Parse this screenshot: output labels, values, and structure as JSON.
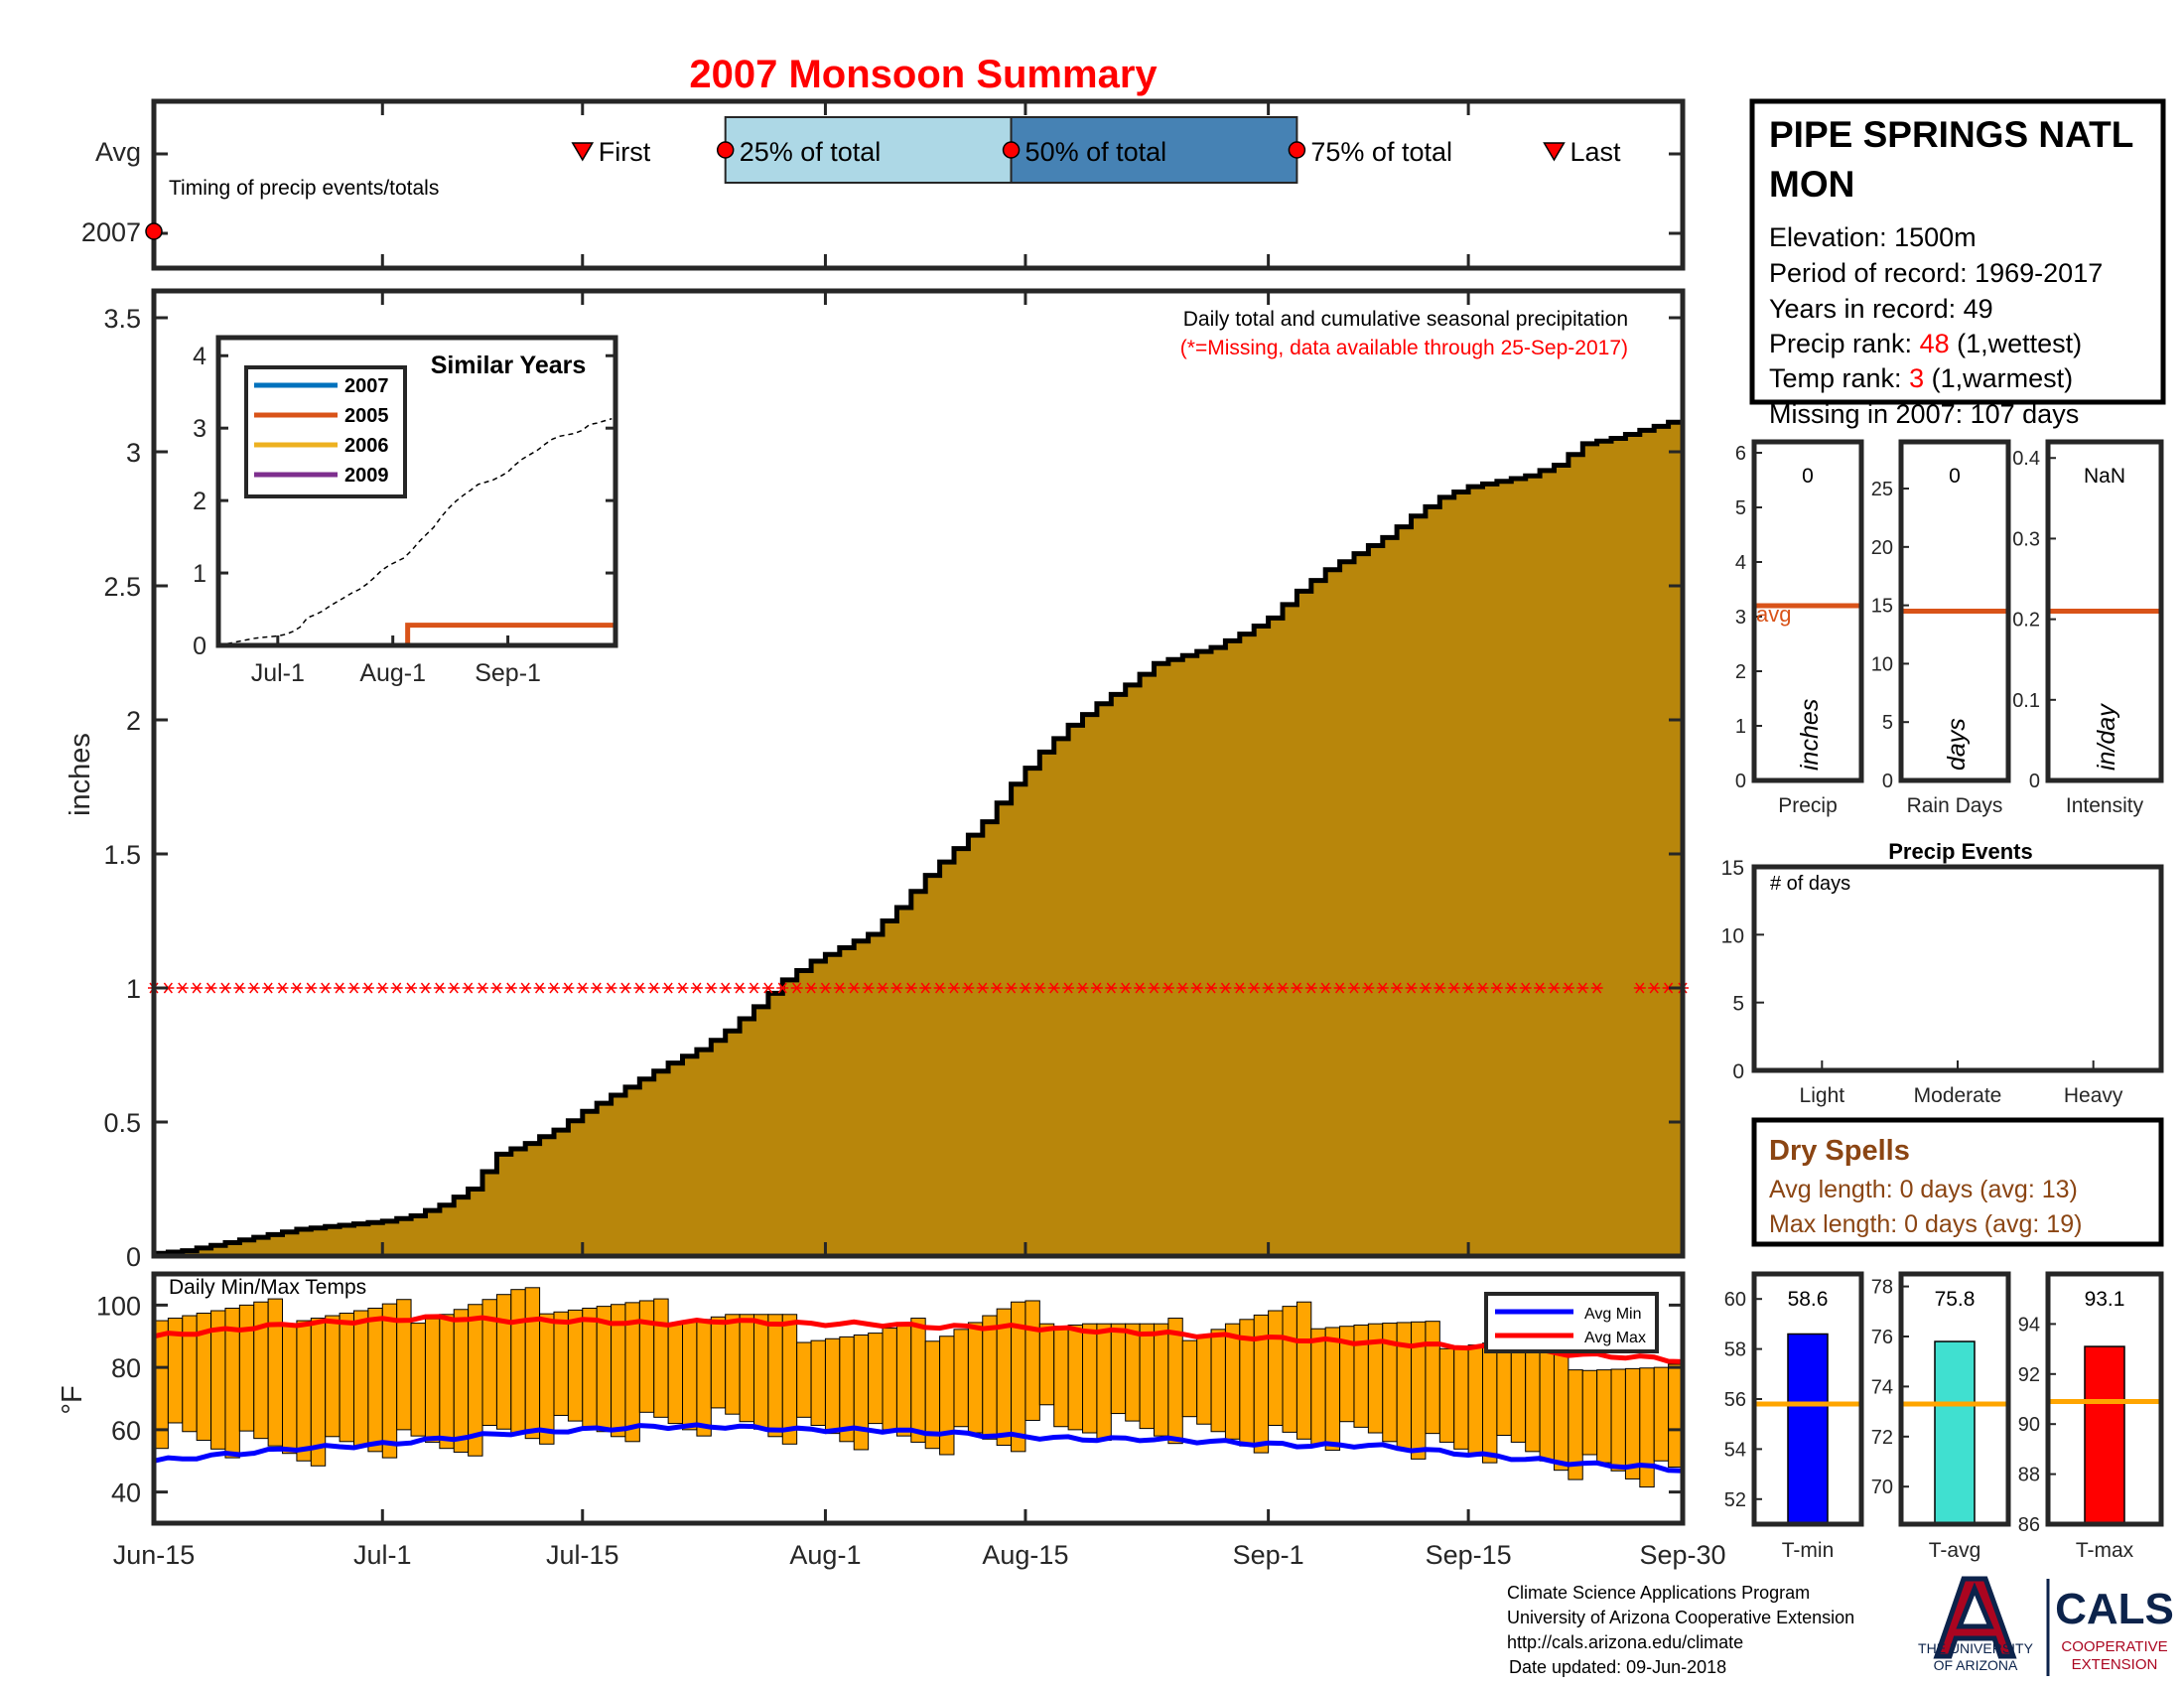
{
  "title": "2007 Monsoon Summary",
  "timing": {
    "avg_label": "Avg",
    "year_label": "2007",
    "caption": "Timing of precip events/totals",
    "first_label": "First",
    "last_label": "Last",
    "q25_label": "25% of total",
    "q50_label": "50% of total",
    "q75_label": "75% of total",
    "avg_first_day": 30,
    "avg_q25_day": 40,
    "avg_q50_day": 60,
    "avg_q75_day": 80,
    "avg_last_day": 98,
    "year_first_day": 0
  },
  "x_axis": {
    "ticks": [
      {
        "label": "Jun-15",
        "day": 0
      },
      {
        "label": "Jul-1",
        "day": 16
      },
      {
        "label": "Jul-15",
        "day": 30
      },
      {
        "label": "Aug-1",
        "day": 47
      },
      {
        "label": "Aug-15",
        "day": 61
      },
      {
        "label": "Sep-1",
        "day": 78
      },
      {
        "label": "Sep-15",
        "day": 92
      },
      {
        "label": "Sep-30",
        "day": 107
      }
    ]
  },
  "precip_panel": {
    "ylabel": "inches",
    "yticks": [
      "0",
      "0.5",
      "1",
      "1.5",
      "2",
      "2.5",
      "3",
      "3.5"
    ],
    "note": "Daily total and cumulative seasonal precipitation",
    "missing_note": "(*=Missing, data available through 25-Sep-2017)",
    "missing_marker_y": 1.0,
    "missing_gap_days": [
      102,
      103
    ]
  },
  "similar_years": {
    "title": "Similar Years",
    "yticks": [
      "0",
      "1",
      "2",
      "3",
      "4"
    ],
    "xticks": [
      {
        "label": "Jul-1",
        "day": 16
      },
      {
        "label": "Aug-1",
        "day": 47
      },
      {
        "label": "Sep-1",
        "day": 78
      }
    ],
    "legend": [
      {
        "name": "2007",
        "color": "#0072BD"
      },
      {
        "name": "2005",
        "color": "#D95319"
      },
      {
        "name": "2006",
        "color": "#EDB120"
      },
      {
        "name": "2009",
        "color": "#7E2F8E"
      }
    ],
    "series_2005_step_day": 51,
    "series_2005_value": 0.28,
    "avg_end_value": 3.15
  },
  "station": {
    "name_line1": "PIPE SPRINGS NATL",
    "name_line2": "MON",
    "elevation": "Elevation: 1500m",
    "period": "Period of record: 1969-2017",
    "years": "Years in record: 49",
    "precip_rank_label": "Precip rank: ",
    "precip_rank_value": "48",
    "precip_rank_suffix": " (1,wettest)",
    "temp_rank_label": "Temp rank: ",
    "temp_rank_value": "3",
    "temp_rank_suffix": " (1,warmest)",
    "missing": "Missing in 2007: 107 days"
  },
  "mini_panels": [
    {
      "label": "Precip",
      "unit": "inches",
      "value_text": "0",
      "ticks": [
        "0",
        "1",
        "2",
        "3",
        "4",
        "5",
        "6"
      ],
      "max": 6.2,
      "avg": 3.2,
      "avg_text": "avg"
    },
    {
      "label": "Rain Days",
      "unit": "days",
      "value_text": "0",
      "ticks": [
        "0",
        "5",
        "10",
        "15",
        "20",
        "25"
      ],
      "max": 29,
      "avg": 14.5
    },
    {
      "label": "Intensity",
      "unit": "in/day",
      "value_text": "NaN",
      "ticks": [
        "0",
        "0.1",
        "0.2",
        "0.3",
        "0.4"
      ],
      "max": 0.42,
      "avg": 0.21
    }
  ],
  "precip_events": {
    "title": "Precip Events",
    "inner": "# of days",
    "yticks": [
      "0",
      "5",
      "10",
      "15"
    ],
    "categories": [
      "Light",
      "Moderate",
      "Heavy"
    ],
    "values": [
      0,
      0,
      0
    ]
  },
  "dry_spells": {
    "title": "Dry Spells",
    "avg_line": "Avg length: 0 days (avg: 13)",
    "max_line": "Max length: 0 days (avg: 19)"
  },
  "temps": {
    "label": "Daily Min/Max Temps",
    "ylabel": "°F",
    "yticks": [
      "40",
      "60",
      "80",
      "100"
    ],
    "legend_min": "Avg Min",
    "legend_max": "Avg Max"
  },
  "temp_bars": [
    {
      "label": "T-min",
      "value": 58.6,
      "value_text": "58.6",
      "ticks": [
        "52",
        "54",
        "56",
        "58",
        "60"
      ],
      "ymin": 51,
      "ymax": 61,
      "avg": 55.8,
      "color": "#0000FF"
    },
    {
      "label": "T-avg",
      "value": 75.8,
      "value_text": "75.8",
      "ticks": [
        "70",
        "72",
        "74",
        "76",
        "78"
      ],
      "ymin": 68.5,
      "ymax": 78.5,
      "avg": 73.3,
      "color": "#40E0D0"
    },
    {
      "label": "T-max",
      "value": 93.1,
      "value_text": "93.1",
      "ticks": [
        "86",
        "88",
        "90",
        "92",
        "94"
      ],
      "ymin": 86,
      "ymax": 96,
      "avg": 90.9,
      "color": "#FF0000"
    }
  ],
  "colors": {
    "precip_fill": "#B8860B",
    "bar_fill": "#FFA500",
    "red": "#FF0000",
    "blue": "#0000FF",
    "q25_fill": "#ADD8E6",
    "q50_fill": "#4682B4",
    "dry_spells": "#8B4513",
    "avg_line": "#D95319",
    "temp_avg_line": "#FFA500"
  },
  "footer": {
    "line1": "Climate Science Applications Program",
    "line2": "University of Arizona Cooperative Extension",
    "line3": "http://cals.arizona.edu/climate",
    "line4": "Date updated: 09-Jun-2018",
    "ua_logo_line1": "THE UNIVERSITY",
    "ua_logo_line2": "OF ARIZONA",
    "cals_logo": "CALS",
    "cals_sub1": "COOPERATIVE",
    "cals_sub2": "EXTENSION"
  },
  "chart_data": {
    "type": "area",
    "title": "2007 Monsoon Summary",
    "xlabel": "",
    "ylabel": "inches",
    "ylim": [
      0,
      3.6
    ],
    "x_start": "Jun-15",
    "x_end": "Sep-30",
    "x_tick_labels": [
      "Jun-15",
      "Jul-1",
      "Jul-15",
      "Aug-1",
      "Aug-15",
      "Sep-1",
      "Sep-15",
      "Sep-30"
    ],
    "series": [
      {
        "name": "Avg cumulative precipitation",
        "x_days": [
          0,
          2,
          4,
          6,
          8,
          10,
          12,
          14,
          16,
          18,
          20,
          22,
          24,
          26,
          28,
          30,
          32,
          34,
          36,
          38,
          40,
          42,
          44,
          46,
          48,
          50,
          52,
          54,
          56,
          58,
          60,
          62,
          64,
          66,
          68,
          70,
          72,
          74,
          76,
          78,
          80,
          82,
          84,
          86,
          88,
          90,
          92,
          94,
          96,
          98,
          100,
          102,
          104,
          106,
          107
        ],
        "values": [
          0.01,
          0.02,
          0.04,
          0.06,
          0.08,
          0.1,
          0.11,
          0.12,
          0.13,
          0.15,
          0.19,
          0.25,
          0.38,
          0.42,
          0.47,
          0.54,
          0.6,
          0.66,
          0.72,
          0.77,
          0.84,
          0.93,
          1.03,
          1.1,
          1.15,
          1.2,
          1.3,
          1.42,
          1.52,
          1.62,
          1.76,
          1.88,
          1.98,
          2.06,
          2.13,
          2.21,
          2.24,
          2.27,
          2.32,
          2.38,
          2.48,
          2.56,
          2.62,
          2.68,
          2.76,
          2.83,
          2.87,
          2.89,
          2.91,
          2.95,
          3.03,
          3.05,
          3.08,
          3.11,
          3.13
        ]
      },
      {
        "name": "Avg Max",
        "x_days": [
          0,
          5,
          10,
          15,
          20,
          25,
          30,
          35,
          40,
          45,
          50,
          55,
          60,
          65,
          70,
          75,
          80,
          85,
          90,
          95,
          100,
          105,
          107
        ],
        "values": [
          90,
          92,
          94,
          95,
          96,
          95,
          95,
          94,
          95,
          94,
          94,
          93,
          93,
          92,
          91,
          90,
          89,
          88,
          87,
          86,
          84,
          83,
          82
        ]
      },
      {
        "name": "Avg Min",
        "x_days": [
          0,
          5,
          10,
          15,
          20,
          25,
          30,
          35,
          40,
          45,
          50,
          55,
          60,
          65,
          70,
          75,
          80,
          85,
          90,
          95,
          100,
          105,
          107
        ],
        "values": [
          50,
          52,
          54,
          55,
          57,
          59,
          60,
          61,
          61,
          60,
          60,
          59,
          58,
          57,
          57,
          56,
          55,
          55,
          53,
          51,
          49,
          48,
          47
        ]
      },
      {
        "name": "Daily Max",
        "x_days": [
          0,
          5,
          10,
          15,
          20,
          25,
          30,
          35,
          40,
          45,
          50,
          55,
          60,
          65,
          70,
          75,
          80,
          85,
          90,
          95,
          100,
          105
        ],
        "values": [
          99,
          98,
          98,
          97,
          99,
          102,
          100,
          98,
          97,
          92,
          90,
          93,
          99,
          96,
          91,
          95,
          97,
          94,
          90,
          88,
          82,
          78
        ]
      },
      {
        "name": "Daily Min",
        "x_days": [
          0,
          5,
          10,
          15,
          20,
          25,
          30,
          35,
          40,
          45,
          50,
          55,
          60,
          65,
          70,
          75,
          80,
          85,
          90,
          95,
          100,
          105
        ],
        "values": [
          59,
          55,
          53,
          55,
          55,
          59,
          60,
          62,
          62,
          60,
          57,
          57,
          57,
          62,
          60,
          58,
          57,
          58,
          54,
          53,
          48,
          45
        ]
      }
    ]
  }
}
